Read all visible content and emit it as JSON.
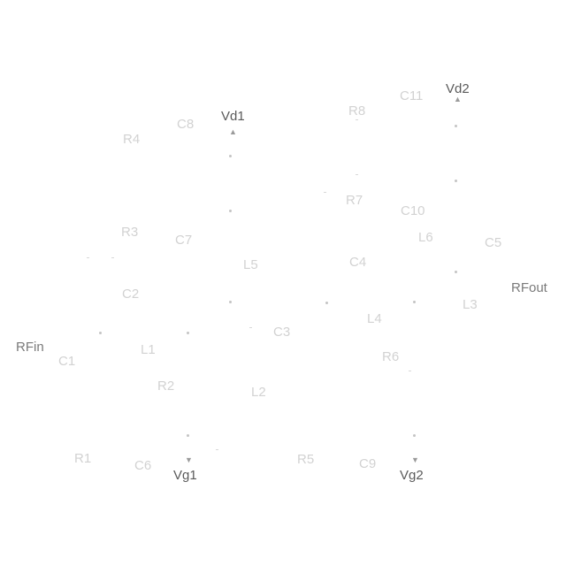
{
  "supplies": {
    "vd1": "Vd1",
    "vd2": "Vd2",
    "vg1": "Vg1",
    "vg2": "Vg2"
  },
  "ports": {
    "rf_in": "RFin",
    "rf_out": "RFout"
  },
  "components": {
    "r1": "R1",
    "r2": "R2",
    "r3": "R3",
    "r4": "R4",
    "r5": "R5",
    "r6": "R6",
    "r7": "R7",
    "r8": "R8",
    "c1": "C1",
    "c2": "C2",
    "c3": "C3",
    "c4": "C4",
    "c5": "C5",
    "c6": "C6",
    "c7": "C7",
    "c8": "C8",
    "c9": "C9",
    "c10": "C10",
    "c11": "C11",
    "l1": "L1",
    "l2": "L2",
    "l3": "L3",
    "l4": "L4",
    "l5": "L5",
    "l6": "L6"
  }
}
